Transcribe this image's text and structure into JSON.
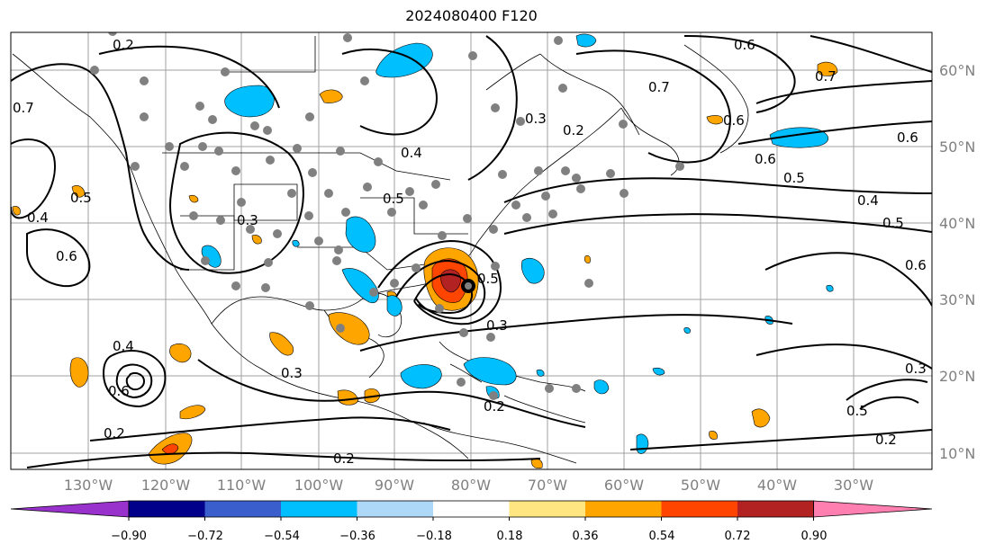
{
  "title": "2024080400 F120",
  "map": {
    "lon_labels": [
      "130°W",
      "120°W",
      "110°W",
      "100°W",
      "90°W",
      "80°W",
      "70°W",
      "60°W",
      "50°W",
      "40°W",
      "30°W"
    ],
    "lat_labels": [
      "60°N",
      "50°N",
      "40°N",
      "30°N",
      "20°N",
      "10°N"
    ],
    "contour_labels": [
      "0.2",
      "0.2",
      "0.4",
      "0.5",
      "0.6",
      "0.7",
      "0.7",
      "0.6",
      "0.6",
      "0.5",
      "0.4",
      "0.5",
      "0.6",
      "0.3",
      "0.2",
      "0.3",
      "0.4",
      "0.2",
      "0.2",
      "0.3",
      "0.6",
      "0.4",
      "0.3",
      "0.2",
      "0.6",
      "0.5",
      "0.7",
      "0.5",
      "0.6",
      "0.3",
      "0.5"
    ]
  },
  "colorbar": {
    "ticks": [
      "−0.90",
      "−0.72",
      "−0.54",
      "−0.36",
      "−0.18",
      "0.18",
      "0.36",
      "0.54",
      "0.72",
      "0.90"
    ],
    "colors": [
      "#9932cc",
      "#00008b",
      "#3a5fcd",
      "#00bfff",
      "#add8f7",
      "#ffffff",
      "#ffe680",
      "#ffa500",
      "#ff4500",
      "#b22222",
      "#ff7fb0"
    ]
  },
  "colors": {
    "positive_fill": "#ffa500",
    "strong_positive": "#ff4500",
    "negative_fill": "#00bfff",
    "station_marker": "#808080",
    "contour": "#000000",
    "grid": "#a0a0a0"
  }
}
